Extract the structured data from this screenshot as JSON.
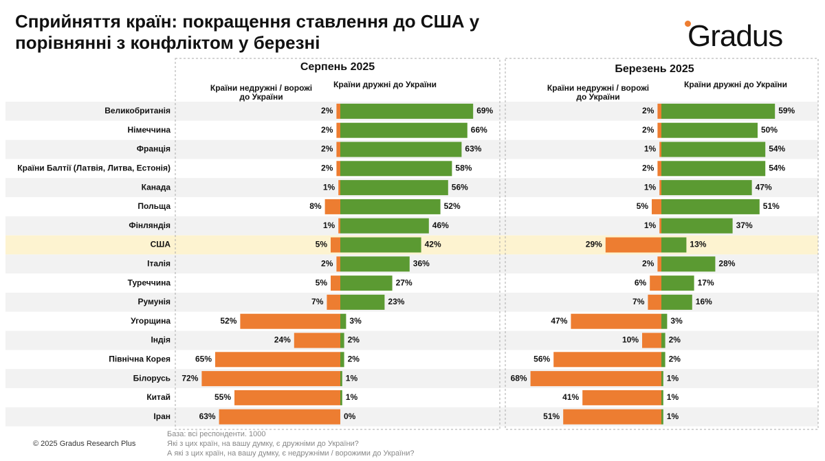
{
  "title": "Сприйняття країн: покращення ставлення до США у порівнянні з конфліктом у березні",
  "logo": "Gradus",
  "copyright": "© 2025 Gradus Research Plus",
  "notes": [
    "База: всі респонденти. 1000",
    "Які з цих країн, на вашу думку, є дружніми до України?",
    "А які з цих країн, на вашу думку, є недружніми / ворожими до України?"
  ],
  "chart_data": {
    "type": "diverging_bar",
    "categories": [
      "Великобританія",
      "Німеччина",
      "Франція",
      "Країни Балтії (Латвія, Литва, Естонія)",
      "Канада",
      "Польща",
      "Фінляндія",
      "США",
      "Італія",
      "Туреччина",
      "Румунія",
      "Угорщина",
      "Індія",
      "Північна Корея",
      "Білорусь",
      "Китай",
      "Іран"
    ],
    "highlight": 7,
    "panels": [
      {
        "title": "Серпень 2025",
        "series": [
          {
            "name": "Країни недружні / ворожі до України",
            "color": "#ed7d31",
            "values": [
              2,
              2,
              2,
              2,
              1,
              8,
              1,
              5,
              2,
              5,
              7,
              52,
              24,
              65,
              72,
              55,
              63
            ],
            "value_labels": [
              "2%",
              "2%",
              "2%",
              "2%",
              "1%",
              "8%",
              "1%",
              "5%",
              "2%",
              "5%",
              "7%",
              "52%",
              "24%",
              "65%",
              "72%",
              "55%",
              "63%"
            ]
          },
          {
            "name": "Країни дружні до України",
            "color": "#5b9a32",
            "values": [
              69,
              66,
              63,
              58,
              56,
              52,
              46,
              42,
              36,
              27,
              23,
              3,
              2,
              2,
              1,
              1,
              0
            ],
            "value_labels": [
              "69%",
              "66%",
              "63%",
              "58%",
              "56%",
              "52%",
              "46%",
              "42%",
              "36%",
              "27%",
              "23%",
              "3%",
              "2%",
              "2%",
              "1%",
              "1%",
              "0%"
            ]
          }
        ]
      },
      {
        "title": "Березень 2025",
        "series": [
          {
            "name": "Країни недружні / ворожі до України",
            "color": "#ed7d31",
            "values": [
              2,
              2,
              1,
              2,
              1,
              5,
              1,
              29,
              2,
              6,
              7,
              47,
              10,
              56,
              68,
              41,
              51
            ],
            "value_labels": [
              "2%",
              "2%",
              "1%",
              "2%",
              "1%",
              "5%",
              "1%",
              "29%",
              "2%",
              "6%",
              "7%",
              "47%",
              "10%",
              "56%",
              "68%",
              "41%",
              "51%"
            ]
          },
          {
            "name": "Країни дружні до України",
            "color": "#5b9a32",
            "values": [
              59,
              50,
              54,
              54,
              47,
              51,
              37,
              13,
              28,
              17,
              16,
              3,
              2,
              2,
              1,
              1,
              1
            ],
            "value_labels": [
              "59%",
              "50%",
              "54%",
              "54%",
              "47%",
              "51%",
              "37%",
              "13%",
              "28%",
              "17%",
              "16%",
              "3%",
              "2%",
              "2%",
              "1%",
              "1%",
              "1%"
            ]
          }
        ]
      }
    ]
  }
}
